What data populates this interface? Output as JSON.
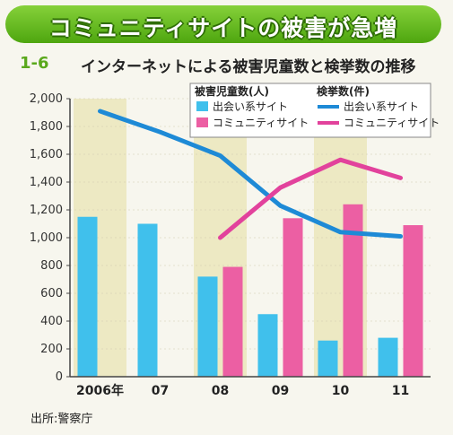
{
  "banner": {
    "title": "コミュニティサイトの被害が急増"
  },
  "figure": {
    "number": "1-6",
    "title": "インターネットによる被害児童数と検挙数の推移"
  },
  "source": "出所:警察庁",
  "colors": {
    "victims_deai": "#40c0ec",
    "victims_community": "#ec5fa3",
    "arrests_deai": "#1e8ad6",
    "arrests_community": "#e2429c",
    "band": "#e9e4b4"
  },
  "chart_data": {
    "type": "bar",
    "categories": [
      "2006年",
      "07",
      "08",
      "09",
      "10",
      "11"
    ],
    "ylim": [
      0,
      2000
    ],
    "yticks": [
      "0",
      "200",
      "400",
      "600",
      "800",
      "1,000",
      "1,200",
      "1,400",
      "1,600",
      "1,800",
      "2,000"
    ],
    "legend": {
      "victims_header": "被害児童数(人)",
      "arrests_header": "検挙数(件)",
      "deai": "出会い系サイト",
      "community": "コミュニティサイト"
    },
    "series": [
      {
        "name": "被害児童数 出会い系サイト",
        "kind": "bar",
        "values": [
          1150,
          1100,
          720,
          450,
          260,
          280
        ]
      },
      {
        "name": "被害児童数 コミュニティサイト",
        "kind": "bar",
        "values": [
          null,
          null,
          790,
          1140,
          1240,
          1090
        ]
      },
      {
        "name": "検挙数 出会い系サイト",
        "kind": "line",
        "values": [
          1910,
          1760,
          1590,
          1230,
          1040,
          1010
        ]
      },
      {
        "name": "検挙数 コミュニティサイト",
        "kind": "line",
        "values": [
          null,
          null,
          1000,
          1360,
          1560,
          1430
        ]
      }
    ]
  }
}
